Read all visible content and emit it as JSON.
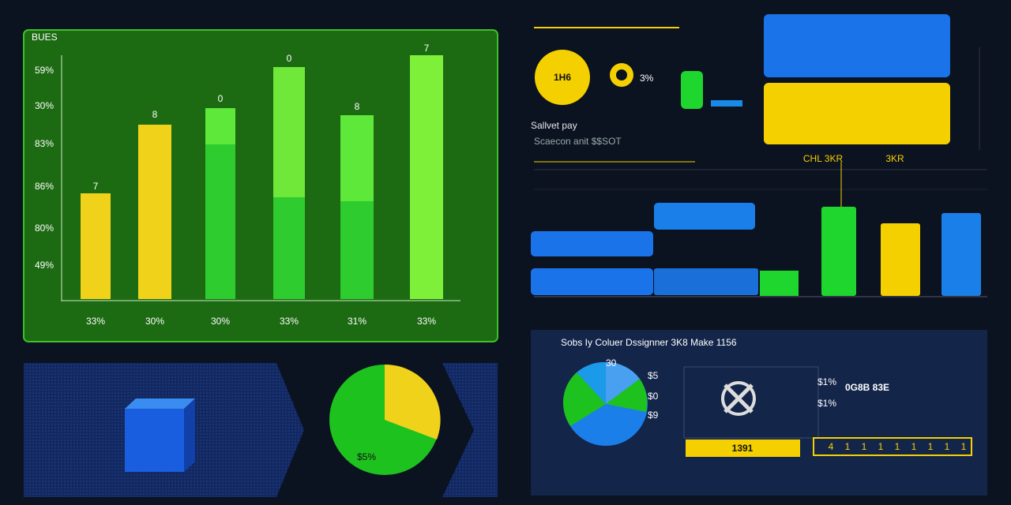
{
  "bar_panel": {
    "title": "BUES",
    "y_labels": [
      "59%",
      "30%",
      "83%",
      "86%",
      "80%",
      "49%"
    ],
    "bar_labels": [
      "7",
      "8",
      "0",
      "0",
      "8",
      "7"
    ],
    "x_labels": [
      "33%",
      "30%",
      "30%",
      "33%",
      "31%",
      "33%"
    ]
  },
  "summary": {
    "badge": "1H6",
    "percent": "3%",
    "title": "Sallvet pay",
    "subtitle": "Scaecon anit $$SOT"
  },
  "bar_panel_2": {
    "labels": [
      "CHL 3KR",
      "3KR"
    ]
  },
  "pie_panel": {
    "label": "$5%"
  },
  "designer_panel": {
    "title": "Sobs Iy Coluer Dssignner 3K8 Make 1156",
    "pie_labels": [
      "30",
      "$5",
      "$0",
      "$9"
    ],
    "side_labels": [
      "$1%",
      "$1%"
    ],
    "code": "0G8B 83E",
    "ticker": "1391",
    "scale": [
      "4",
      "1",
      "1",
      "1",
      "1",
      "1",
      "1",
      "1",
      "1"
    ]
  }
}
